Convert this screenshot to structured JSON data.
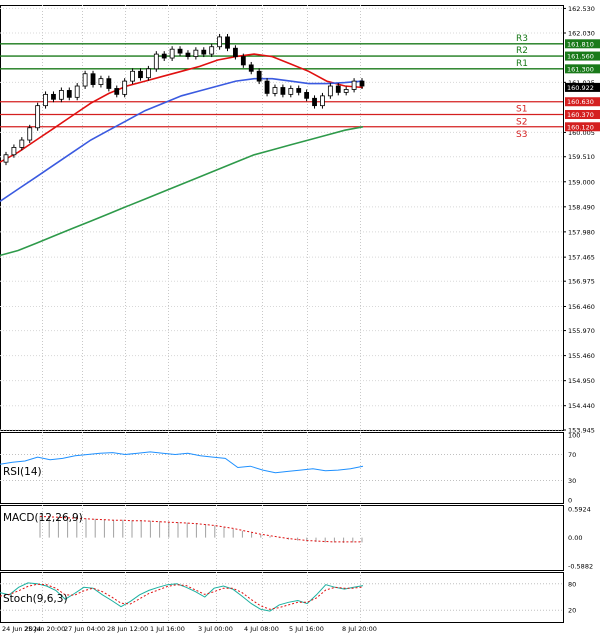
{
  "chart_data": {
    "type": "line",
    "price_axis": {
      "ticks": [
        "162.530",
        "162.030",
        "161.025",
        "160.005",
        "159.510",
        "159.000",
        "158.490",
        "157.980",
        "157.465",
        "156.975",
        "156.460",
        "155.970",
        "155.460",
        "154.950",
        "154.440",
        "153.945"
      ],
      "range": [
        153.945,
        162.6
      ]
    },
    "time_axis": {
      "labels": [
        "24 Jun 2024",
        "25 Jun 20:00",
        "27 Jun 04:00",
        "28 Jun 12:00",
        "1 Jul 16:00",
        "3 Jul 00:00",
        "4 Jul 08:00",
        "5 Jul 16:00",
        "8 Jul 20:00"
      ]
    },
    "current_price": "160.922",
    "pivot_levels": [
      {
        "label": "R3",
        "value": 161.81,
        "tag": "161.810",
        "color": "#1a7a1a"
      },
      {
        "label": "R2",
        "value": 161.56,
        "tag": "161.560",
        "color": "#1a7a1a"
      },
      {
        "label": "R1",
        "value": 161.3,
        "tag": "161.300",
        "color": "#1a7a1a"
      },
      {
        "label": "S1",
        "value": 160.63,
        "tag": "160.630",
        "color": "#d42020"
      },
      {
        "label": "S2",
        "value": 160.37,
        "tag": "160.370",
        "color": "#d42020"
      },
      {
        "label": "S3",
        "value": 160.12,
        "tag": "160.120",
        "color": "#d42020"
      }
    ],
    "series": [
      {
        "color": "#e01010",
        "values": [
          159.4,
          159.6,
          159.85,
          160.1,
          160.35,
          160.6,
          160.8,
          160.95,
          161.05,
          161.15,
          161.25,
          161.35,
          161.48,
          161.55,
          161.6,
          161.55,
          161.4,
          161.25,
          161.05,
          160.95,
          160.92
        ]
      },
      {
        "color": "#3a5ae0",
        "values": [
          158.6,
          158.85,
          159.1,
          159.35,
          159.6,
          159.85,
          160.05,
          160.25,
          160.45,
          160.6,
          160.75,
          160.85,
          160.95,
          161.05,
          161.1,
          161.1,
          161.05,
          161.0,
          161.0,
          161.02,
          161.05
        ]
      },
      {
        "color": "#2e9a4a",
        "values": [
          157.5,
          157.6,
          157.75,
          157.9,
          158.05,
          158.2,
          158.35,
          158.5,
          158.65,
          158.8,
          158.95,
          159.1,
          159.25,
          159.4,
          159.55,
          159.65,
          159.75,
          159.85,
          159.95,
          160.05,
          160.12
        ]
      }
    ],
    "candles": [
      [
        159.4,
        159.55
      ],
      [
        159.55,
        159.7
      ],
      [
        159.7,
        159.85
      ],
      [
        159.85,
        160.1
      ],
      [
        160.1,
        160.55
      ],
      [
        160.55,
        160.78
      ],
      [
        160.78,
        160.68
      ],
      [
        160.68,
        160.86
      ],
      [
        160.86,
        160.72
      ],
      [
        160.72,
        160.95
      ],
      [
        160.95,
        161.2
      ],
      [
        161.2,
        160.98
      ],
      [
        160.98,
        161.1
      ],
      [
        161.1,
        160.9
      ],
      [
        160.9,
        160.78
      ],
      [
        160.78,
        161.05
      ],
      [
        161.05,
        161.25
      ],
      [
        161.25,
        161.12
      ],
      [
        161.12,
        161.3
      ],
      [
        161.3,
        161.6
      ],
      [
        161.6,
        161.52
      ],
      [
        161.52,
        161.7
      ],
      [
        161.7,
        161.62
      ],
      [
        161.62,
        161.55
      ],
      [
        161.55,
        161.68
      ],
      [
        161.68,
        161.6
      ],
      [
        161.6,
        161.75
      ],
      [
        161.75,
        161.95
      ],
      [
        161.95,
        161.72
      ],
      [
        161.72,
        161.55
      ],
      [
        161.55,
        161.38
      ],
      [
        161.38,
        161.25
      ],
      [
        161.25,
        161.05
      ],
      [
        161.05,
        160.8
      ],
      [
        160.8,
        160.92
      ],
      [
        160.92,
        160.78
      ],
      [
        160.78,
        160.9
      ],
      [
        160.9,
        160.82
      ],
      [
        160.82,
        160.7
      ],
      [
        160.7,
        160.55
      ],
      [
        160.55,
        160.75
      ],
      [
        160.75,
        160.95
      ],
      [
        160.95,
        160.82
      ],
      [
        160.82,
        160.88
      ],
      [
        160.88,
        161.05
      ],
      [
        161.05,
        160.95
      ]
    ],
    "indicators": {
      "rsi": {
        "label": "RSI(14)",
        "ticks": [
          "100",
          "70",
          "30",
          "0"
        ],
        "values": [
          55,
          58,
          60,
          66,
          62,
          64,
          68,
          70,
          72,
          73,
          70,
          72,
          74,
          72,
          70,
          72,
          68,
          66,
          64,
          50,
          52,
          46,
          42,
          44,
          46,
          48,
          45,
          46,
          48,
          52
        ]
      },
      "macd": {
        "label": "MACD(12,26,9)",
        "ticks": [
          "0.5924",
          "0.00",
          "-0.5882"
        ],
        "histogram": [
          0.45,
          0.44,
          0.43,
          0.42,
          0.41,
          0.4,
          0.39,
          0.38,
          0.37,
          0.37,
          0.36,
          0.36,
          0.35,
          0.34,
          0.33,
          0.32,
          0.31,
          0.3,
          0.28,
          0.25,
          0.22,
          0.18,
          0.14,
          0.1,
          0.06,
          0.03,
          -0.01,
          -0.04,
          -0.06,
          -0.08,
          -0.09,
          -0.1,
          -0.1,
          -0.11,
          -0.1,
          -0.1
        ],
        "signal": [
          0.44,
          0.43,
          0.42,
          0.41,
          0.4,
          0.39,
          0.38,
          0.37,
          0.36,
          0.36,
          0.35,
          0.35,
          0.34,
          0.33,
          0.32,
          0.31,
          0.3,
          0.29,
          0.27,
          0.25,
          0.22,
          0.19,
          0.15,
          0.11,
          0.07,
          0.04,
          0.01,
          -0.02,
          -0.04,
          -0.06,
          -0.07,
          -0.08,
          -0.09,
          -0.09,
          -0.09,
          -0.09
        ]
      },
      "stoch": {
        "label": "Stoch(9,6,3)",
        "ticks": [
          "80",
          "20"
        ],
        "main": [
          60,
          55,
          72,
          82,
          80,
          75,
          65,
          45,
          58,
          72,
          70,
          55,
          42,
          28,
          40,
          55,
          65,
          72,
          78,
          80,
          72,
          62,
          50,
          70,
          75,
          68,
          52,
          35,
          22,
          18,
          32,
          38,
          42,
          35,
          55,
          78,
          72,
          68,
          72,
          76
        ],
        "signal": [
          52,
          56,
          64,
          74,
          79,
          78,
          70,
          55,
          54,
          64,
          70,
          62,
          50,
          36,
          34,
          46,
          58,
          66,
          74,
          78,
          76,
          66,
          56,
          62,
          70,
          70,
          60,
          44,
          30,
          22,
          26,
          32,
          38,
          38,
          48,
          66,
          72,
          70,
          70,
          73
        ]
      }
    }
  }
}
